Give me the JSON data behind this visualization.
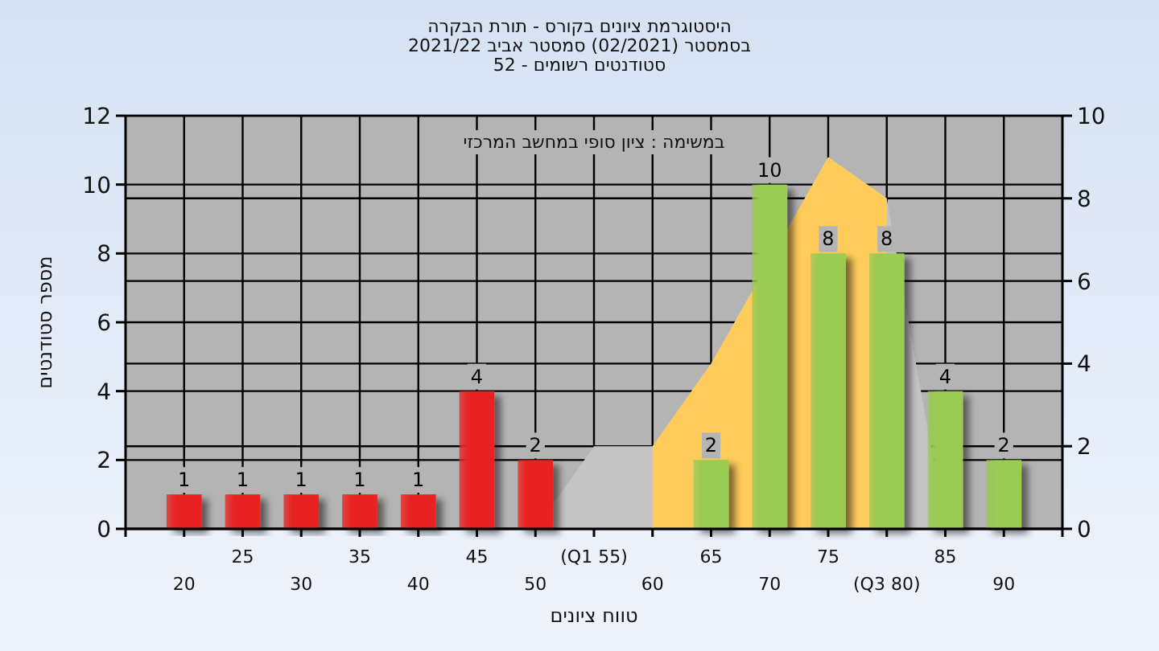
{
  "chart_data": {
    "type": "bar",
    "title": "היסטוגרמת ציונים בקורס - תורת הבקרה",
    "subtitle": "בסמסטר  (02/2021)  סמסטר אביב 2021/22\nסטודנטים רשומים - 52",
    "xlabel": "טווח ציונים",
    "ylabel": "מספר סטודנטים",
    "annotations": [
      "במשימה : ציון סופי במחשב המרכזי"
    ],
    "categories": [
      "20",
      "25",
      "30",
      "35",
      "40",
      "45",
      "50",
      "(Q1 55)",
      "60",
      "65",
      "70",
      "75",
      "(Q3 80)",
      "85",
      "90"
    ],
    "series": [
      {
        "type": "area",
        "axis": "y2",
        "color": "#c4c4c4",
        "values": [
          null,
          null,
          null,
          null,
          null,
          null,
          0,
          2,
          2,
          4,
          null,
          9,
          8,
          0,
          null
        ]
      },
      {
        "type": "area",
        "axis": "y2",
        "color": "#ffcc5c",
        "values": [
          null,
          null,
          null,
          null,
          null,
          null,
          null,
          null,
          2,
          4,
          null,
          9,
          8,
          null,
          null
        ]
      },
      {
        "colors": [
          "#e82424",
          "#e82424",
          "#e82424",
          "#e82424",
          "#e82424",
          "#e82424",
          "#e82424",
          "#e82424",
          "#e82424",
          "#9acb52",
          "#9acb52",
          "#9acb52",
          "#9acb52",
          "#9acb52",
          "#9acb52"
        ],
        "values": [
          1,
          1,
          1,
          1,
          1,
          4,
          2,
          0,
          0,
          2,
          10,
          8,
          8,
          4,
          2
        ],
        "value_labels": [
          "1",
          "1",
          "1",
          "1",
          "1",
          "4",
          "2",
          null,
          null,
          "2",
          "10",
          "8",
          "8",
          "4",
          "2"
        ]
      }
    ],
    "ylim": [
      0,
      12
    ],
    "yticks": [
      0,
      2,
      4,
      6,
      8,
      10,
      12
    ],
    "y2lim": [
      0,
      10
    ],
    "y2ticks": [
      0,
      2,
      4,
      6,
      8,
      10
    ],
    "grid": true
  }
}
